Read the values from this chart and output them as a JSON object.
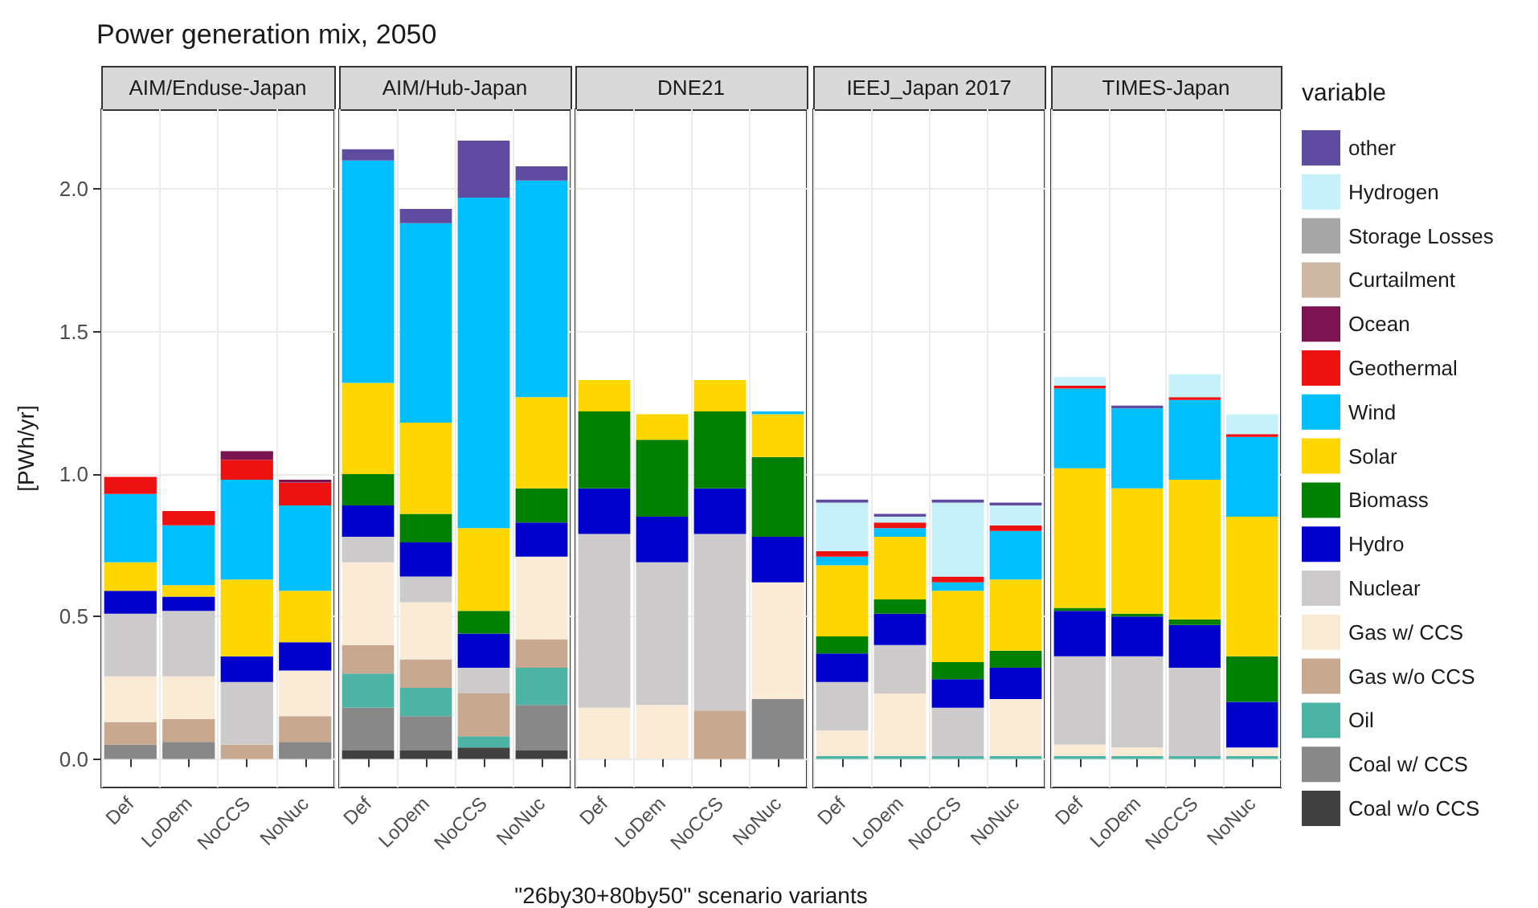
{
  "chart_data": [
    {
      "type": "bar",
      "stacked": true,
      "title": "Power generation mix, 2050",
      "subtitle": "AIM/Enduse-Japan",
      "ylabel": "[PWh/yr]",
      "categories": [
        "Def",
        "LoDem",
        "NoCCS",
        "NoNuc"
      ],
      "ylim": [
        -0.1,
        2.28
      ],
      "yticks": [
        {
          "value": 0,
          "label": "0.0"
        },
        {
          "value": 0.5,
          "label": "0.5"
        },
        {
          "value": 1,
          "label": "1.0"
        },
        {
          "value": 1.5,
          "label": "1.5"
        },
        {
          "value": 2,
          "label": "2.0"
        }
      ],
      "grid": true,
      "series": [
        {
          "color": "#888888",
          "values": [
            0.05,
            0.06,
            null,
            0.06
          ]
        },
        {
          "color": "#c8a98f",
          "values": [
            0.08,
            0.08,
            0.05,
            0.09
          ]
        },
        {
          "color": "#faebd7",
          "values": [
            0.16,
            0.15,
            null,
            0.16
          ]
        },
        {
          "color": "#cccaca",
          "values": [
            0.22,
            0.23,
            0.22,
            null
          ]
        },
        {
          "color": "#0000cd",
          "values": [
            0.08,
            0.05,
            0.09,
            0.1
          ]
        },
        {
          "color": "#ffd700",
          "values": [
            0.1,
            0.04,
            0.27,
            0.18
          ]
        },
        {
          "color": "#00bfff",
          "values": [
            0.24,
            0.21,
            0.35,
            0.3
          ]
        },
        {
          "color": "#ee1111",
          "values": [
            0.06,
            0.05,
            0.07,
            0.08
          ]
        },
        {
          "color": "#7b1450",
          "values": [
            null,
            null,
            0.03,
            0.01
          ]
        }
      ]
    },
    {
      "type": "bar",
      "stacked": true,
      "subtitle": "AIM/Hub-Japan",
      "categories": [
        "Def",
        "LoDem",
        "NoCCS",
        "NoNuc"
      ],
      "ylim": [
        -0.1,
        2.28
      ],
      "yticks": [
        0,
        0.5,
        1,
        1.5,
        2
      ],
      "grid": true,
      "tick_labels": "x",
      "series": [
        {
          "color": "#404040",
          "values": [
            0.03,
            0.03,
            0.04,
            0.03
          ]
        },
        {
          "color": "#888888",
          "values": [
            0.15,
            0.12,
            null,
            0.16
          ]
        },
        {
          "color": "#4db3a5",
          "values": [
            0.12,
            0.1,
            0.04,
            0.13
          ]
        },
        {
          "color": "#c8a98f",
          "values": [
            0.1,
            0.1,
            0.15,
            0.1
          ]
        },
        {
          "color": "#faebd7",
          "values": [
            0.29,
            0.2,
            null,
            0.29
          ]
        },
        {
          "color": "#cccaca",
          "values": [
            0.09,
            0.09,
            0.09,
            null
          ]
        },
        {
          "color": "#0000cd",
          "values": [
            0.11,
            0.12,
            0.12,
            0.12
          ]
        },
        {
          "color": "#008000",
          "values": [
            0.11,
            0.1,
            0.08,
            0.12
          ]
        },
        {
          "color": "#ffd700",
          "values": [
            0.32,
            0.32,
            0.29,
            0.32
          ]
        },
        {
          "color": "#00bfff",
          "values": [
            0.78,
            0.7,
            1.16,
            0.76
          ]
        },
        {
          "color": "#5f4ba0",
          "values": [
            0.04,
            0.05,
            0.2,
            0.05
          ]
        }
      ]
    },
    {
      "type": "bar",
      "stacked": true,
      "subtitle": "DNE21",
      "xlabel": "\"26by30+80by50\" scenario variants",
      "categories": [
        "Def",
        "LoDem",
        "NoCCS",
        "NoNuc"
      ],
      "ylim": [
        -0.1,
        2.28
      ],
      "yticks": [
        0,
        0.5,
        1,
        1.5,
        2
      ],
      "grid": true,
      "tick_labels": "x",
      "series": [
        {
          "color": "#888888",
          "values": [
            null,
            null,
            null,
            0.21
          ]
        },
        {
          "color": "#c8a98f",
          "values": [
            null,
            null,
            0.17,
            null
          ]
        },
        {
          "color": "#faebd7",
          "values": [
            0.18,
            0.19,
            null,
            0.41
          ]
        },
        {
          "color": "#cccaca",
          "values": [
            0.61,
            0.5,
            0.62,
            null
          ]
        },
        {
          "color": "#0000cd",
          "values": [
            0.16,
            0.16,
            0.16,
            0.16
          ]
        },
        {
          "color": "#008000",
          "values": [
            0.27,
            0.27,
            0.27,
            0.28
          ]
        },
        {
          "color": "#ffd700",
          "values": [
            0.11,
            0.09,
            0.11,
            0.15
          ]
        },
        {
          "color": "#00bfff",
          "values": [
            null,
            null,
            null,
            0.01
          ]
        }
      ]
    },
    {
      "type": "bar",
      "stacked": true,
      "subtitle": "IEEJ_Japan 2017",
      "categories": [
        "Def",
        "LoDem",
        "NoCCS",
        "NoNuc"
      ],
      "ylim": [
        -0.1,
        2.28
      ],
      "yticks": [
        0,
        0.5,
        1,
        1.5,
        2
      ],
      "grid": true,
      "tick_labels": "x",
      "series": [
        {
          "color": "#4db3a5",
          "values": [
            0.01,
            0.01,
            0.01,
            0.01
          ]
        },
        {
          "color": "#faebd7",
          "values": [
            0.09,
            0.22,
            null,
            0.2
          ]
        },
        {
          "color": "#cccaca",
          "values": [
            0.17,
            0.17,
            0.17,
            null
          ]
        },
        {
          "color": "#0000cd",
          "values": [
            0.1,
            0.11,
            0.1,
            0.11
          ]
        },
        {
          "color": "#008000",
          "values": [
            0.06,
            0.05,
            0.06,
            0.06
          ]
        },
        {
          "color": "#ffd700",
          "values": [
            0.25,
            0.22,
            0.25,
            0.25
          ]
        },
        {
          "color": "#00bfff",
          "values": [
            0.03,
            0.03,
            0.03,
            0.17
          ]
        },
        {
          "color": "#ee1111",
          "values": [
            0.02,
            0.02,
            0.02,
            0.02
          ]
        },
        {
          "color": "#c6f1fb",
          "values": [
            0.17,
            0.02,
            0.26,
            0.07
          ]
        },
        {
          "color": "#5f4ba0",
          "values": [
            0.01,
            0.01,
            0.01,
            0.01
          ]
        }
      ]
    },
    {
      "type": "bar",
      "stacked": true,
      "subtitle": "TIMES-Japan",
      "legend": "right",
      "legend_title": "variable",
      "categories": [
        "Def",
        "LoDem",
        "NoCCS",
        "NoNuc"
      ],
      "ylim": [
        -0.1,
        2.28
      ],
      "yticks": [
        0,
        0.5,
        1,
        1.5,
        2
      ],
      "grid": true,
      "tick_labels": "x",
      "series": [
        {
          "name": "Coal w/o CCS",
          "color": "#404040",
          "values": [
            null,
            null,
            null,
            null
          ]
        },
        {
          "name": "Coal w/ CCS",
          "color": "#888888",
          "values": [
            null,
            null,
            null,
            null
          ]
        },
        {
          "name": "Oil",
          "color": "#4db3a5",
          "values": [
            0.01,
            0.01,
            0.01,
            0.01
          ]
        },
        {
          "name": "Gas w/o CCS",
          "color": "#c8a98f",
          "values": [
            null,
            null,
            null,
            null
          ]
        },
        {
          "name": "Gas w/ CCS",
          "color": "#faebd7",
          "values": [
            0.04,
            0.03,
            null,
            0.03
          ]
        },
        {
          "name": "Nuclear",
          "color": "#cccaca",
          "values": [
            0.31,
            0.32,
            0.31,
            null
          ]
        },
        {
          "name": "Hydro",
          "color": "#0000cd",
          "values": [
            0.16,
            0.14,
            0.15,
            0.16
          ]
        },
        {
          "name": "Biomass",
          "color": "#008000",
          "values": [
            0.01,
            0.01,
            0.02,
            0.16
          ]
        },
        {
          "name": "Solar",
          "color": "#ffd700",
          "values": [
            0.49,
            0.44,
            0.49,
            0.49
          ]
        },
        {
          "name": "Wind",
          "color": "#00bfff",
          "values": [
            0.28,
            0.28,
            0.28,
            0.28
          ]
        },
        {
          "name": "Geothermal",
          "color": "#ee1111",
          "values": [
            0.01,
            null,
            0.01,
            0.01
          ]
        },
        {
          "name": "Ocean",
          "color": "#7b1450",
          "values": [
            null,
            null,
            null,
            null
          ]
        },
        {
          "name": "Curtailment",
          "color": "#cdb7a5",
          "values": [
            null,
            null,
            null,
            null
          ]
        },
        {
          "name": "Storage Losses",
          "color": "#a6a6a6",
          "values": [
            null,
            null,
            null,
            null
          ]
        },
        {
          "name": "Hydrogen",
          "color": "#c6f1fb",
          "values": [
            0.03,
            null,
            0.08,
            0.07
          ]
        },
        {
          "name": "other",
          "color": "#5f4ba0",
          "values": [
            null,
            0.01,
            null,
            null
          ]
        }
      ]
    }
  ]
}
